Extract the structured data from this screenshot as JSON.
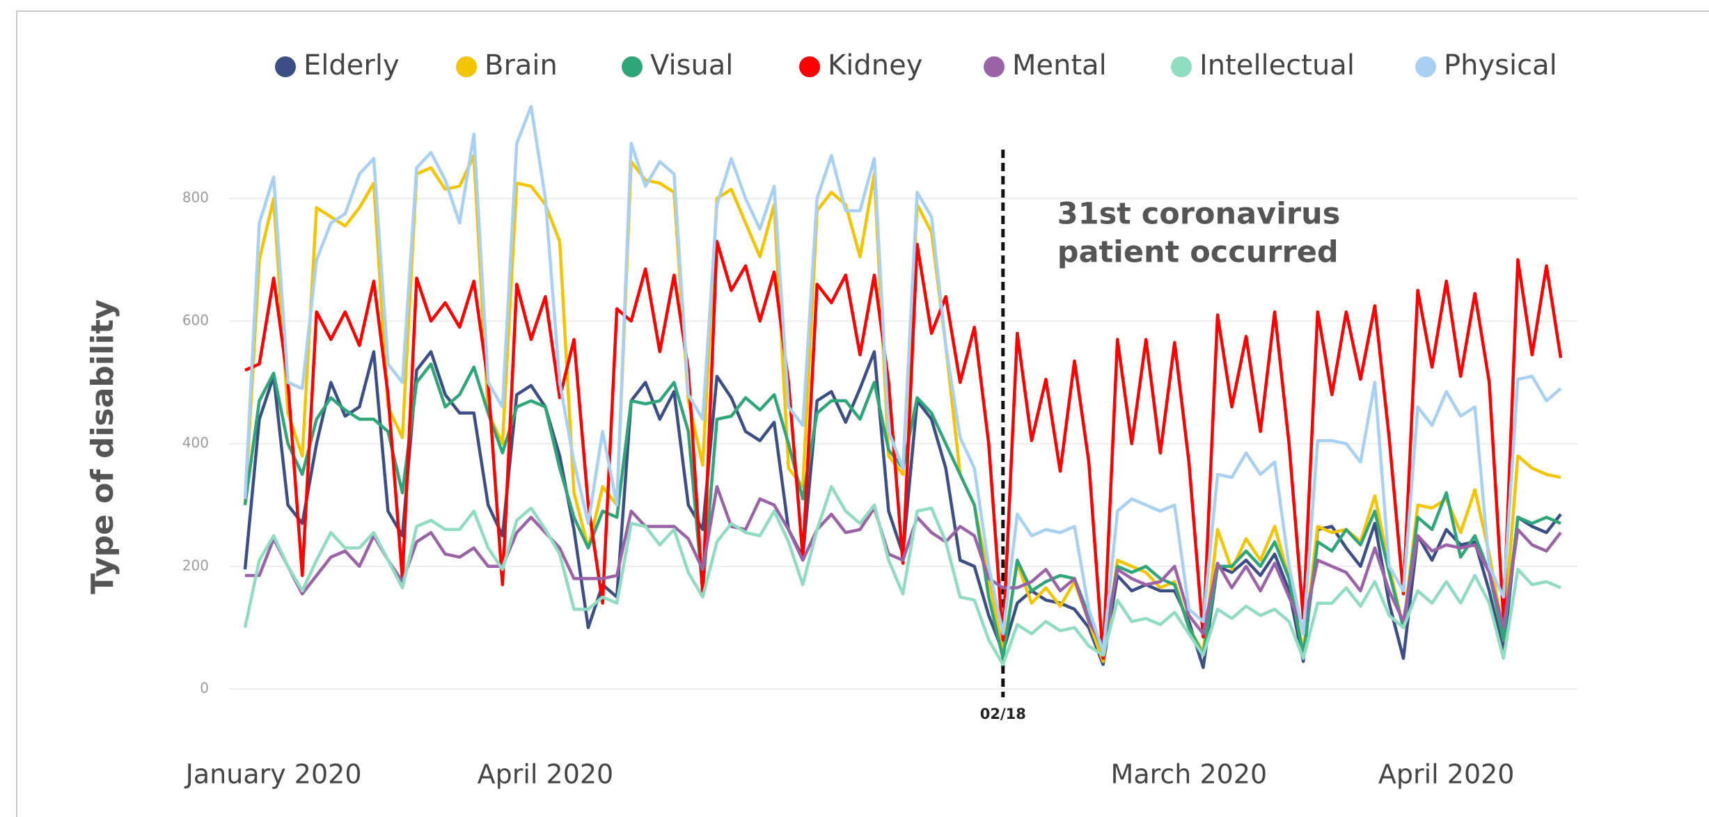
{
  "chart_data": {
    "type": "line",
    "ylabel": "Type of disability",
    "ylim": [
      0,
      1000
    ],
    "yticks": [
      0,
      200,
      400,
      600,
      800
    ],
    "grid": true,
    "legend": "top",
    "annotation": {
      "x": "02/18",
      "text": [
        "31st coronavirus",
        "patient occurred"
      ]
    },
    "categories": [
      null,
      null,
      "January 2020",
      null,
      null,
      null,
      null,
      null,
      null,
      null,
      null,
      null,
      null,
      null,
      null,
      null,
      null,
      null,
      null,
      null,
      null,
      "April 2020",
      null,
      null,
      null,
      null,
      null,
      null,
      null,
      null,
      null,
      null,
      null,
      null,
      null,
      null,
      null,
      null,
      null,
      null,
      null,
      null,
      null,
      null,
      null,
      null,
      null,
      null,
      null,
      null,
      null,
      null,
      null,
      "02/18",
      null,
      null,
      null,
      null,
      null,
      null,
      null,
      null,
      null,
      null,
      null,
      null,
      "March 2020",
      null,
      null,
      null,
      null,
      null,
      null,
      null,
      null,
      null,
      null,
      null,
      null,
      null,
      null,
      null,
      null,
      null,
      "April 2020",
      null,
      null,
      null,
      null,
      null,
      null,
      null,
      null
    ],
    "series": [
      {
        "name": "Elderly",
        "color": "#3b4f86",
        "values": [
          195,
          440,
          510,
          300,
          270,
          400,
          500,
          445,
          460,
          550,
          290,
          250,
          520,
          550,
          480,
          450,
          450,
          300,
          250,
          480,
          495,
          460,
          380,
          260,
          100,
          170,
          150,
          470,
          500,
          440,
          485,
          300,
          260,
          510,
          475,
          420,
          405,
          435,
          260,
          215,
          470,
          485,
          435,
          490,
          550,
          290,
          220,
          470,
          440,
          360,
          210,
          200,
          120,
          60,
          140,
          160,
          145,
          140,
          130,
          100,
          40,
          185,
          160,
          170,
          160,
          160,
          110,
          35,
          200,
          190,
          210,
          185,
          220,
          160,
          45,
          260,
          265,
          230,
          200,
          270,
          140,
          50,
          250,
          210,
          260,
          235,
          240,
          160,
          60,
          280,
          265,
          255,
          285
        ]
      },
      {
        "name": "Brain",
        "color": "#f2c500",
        "values": [
          300,
          700,
          800,
          450,
          380,
          785,
          770,
          755,
          785,
          825,
          460,
          410,
          840,
          850,
          815,
          820,
          870,
          450,
          400,
          825,
          820,
          790,
          730,
          320,
          230,
          330,
          300,
          860,
          830,
          825,
          810,
          470,
          365,
          800,
          815,
          760,
          705,
          790,
          360,
          330,
          780,
          810,
          790,
          705,
          840,
          380,
          350,
          790,
          745,
          560,
          350,
          300,
          180,
          60,
          205,
          140,
          165,
          135,
          175,
          110,
          45,
          210,
          200,
          190,
          165,
          175,
          100,
          60,
          260,
          195,
          245,
          210,
          265,
          180,
          60,
          265,
          255,
          260,
          240,
          315,
          200,
          100,
          300,
          295,
          310,
          255,
          325,
          220,
          90,
          380,
          360,
          350,
          345
        ]
      },
      {
        "name": "Visual",
        "color": "#2ea678",
        "values": [
          300,
          470,
          515,
          400,
          350,
          440,
          475,
          455,
          440,
          440,
          420,
          320,
          500,
          530,
          460,
          480,
          525,
          450,
          385,
          460,
          470,
          460,
          360,
          280,
          230,
          290,
          280,
          470,
          465,
          470,
          500,
          420,
          160,
          440,
          445,
          475,
          455,
          480,
          400,
          310,
          450,
          470,
          470,
          440,
          500,
          390,
          360,
          475,
          450,
          400,
          350,
          300,
          150,
          50,
          210,
          160,
          175,
          185,
          180,
          120,
          60,
          200,
          190,
          200,
          180,
          170,
          100,
          55,
          200,
          200,
          225,
          200,
          240,
          180,
          55,
          240,
          225,
          260,
          235,
          290,
          190,
          100,
          280,
          260,
          320,
          215,
          250,
          190,
          80,
          280,
          270,
          280,
          270
        ]
      },
      {
        "name": "Kidney",
        "color": "#ff0000",
        "values": [
          520,
          530,
          670,
          500,
          185,
          615,
          570,
          615,
          560,
          665,
          480,
          180,
          670,
          600,
          630,
          590,
          665,
          500,
          170,
          660,
          570,
          640,
          475,
          570,
          300,
          140,
          620,
          600,
          685,
          550,
          675,
          520,
          155,
          730,
          650,
          690,
          600,
          680,
          500,
          215,
          660,
          630,
          675,
          545,
          675,
          500,
          205,
          725,
          580,
          640,
          500,
          590,
          400,
          80,
          580,
          405,
          505,
          355,
          535,
          370,
          50,
          570,
          400,
          570,
          385,
          565,
          370,
          85,
          610,
          460,
          575,
          420,
          615,
          400,
          115,
          615,
          480,
          615,
          505,
          625,
          410,
          155,
          650,
          525,
          665,
          510,
          645,
          500,
          115,
          700,
          545,
          690,
          540
        ]
      },
      {
        "name": "Mental",
        "color": "#9b62a8",
        "values": [
          185,
          185,
          245,
          200,
          155,
          185,
          215,
          225,
          200,
          250,
          210,
          175,
          240,
          255,
          220,
          215,
          230,
          200,
          200,
          255,
          280,
          255,
          230,
          180,
          180,
          180,
          185,
          290,
          265,
          265,
          265,
          245,
          195,
          330,
          265,
          260,
          310,
          300,
          260,
          210,
          260,
          285,
          255,
          260,
          295,
          220,
          210,
          280,
          255,
          240,
          265,
          250,
          180,
          165,
          165,
          175,
          195,
          160,
          180,
          110,
          70,
          195,
          180,
          170,
          175,
          200,
          120,
          90,
          205,
          165,
          200,
          160,
          205,
          150,
          100,
          210,
          200,
          190,
          160,
          230,
          160,
          110,
          250,
          225,
          235,
          230,
          235,
          190,
          100,
          260,
          235,
          225,
          255
        ]
      },
      {
        "name": "Intellectual",
        "color": "#90dcc0",
        "values": [
          100,
          210,
          250,
          200,
          160,
          210,
          255,
          230,
          230,
          255,
          210,
          165,
          265,
          275,
          260,
          260,
          290,
          230,
          195,
          275,
          295,
          260,
          220,
          130,
          130,
          150,
          140,
          270,
          265,
          235,
          260,
          190,
          150,
          240,
          270,
          255,
          250,
          290,
          240,
          170,
          260,
          330,
          290,
          270,
          300,
          210,
          155,
          290,
          295,
          240,
          150,
          145,
          80,
          40,
          105,
          90,
          110,
          95,
          100,
          70,
          55,
          145,
          110,
          115,
          105,
          125,
          90,
          55,
          130,
          115,
          135,
          120,
          130,
          110,
          50,
          140,
          140,
          165,
          135,
          175,
          120,
          100,
          160,
          140,
          175,
          140,
          185,
          140,
          50,
          195,
          170,
          175,
          165
        ]
      },
      {
        "name": "Physical",
        "color": "#a7d0f3",
        "values": [
          310,
          760,
          835,
          500,
          490,
          700,
          760,
          775,
          840,
          865,
          530,
          500,
          850,
          875,
          830,
          760,
          905,
          500,
          460,
          890,
          950,
          800,
          500,
          370,
          270,
          420,
          300,
          890,
          820,
          860,
          840,
          480,
          440,
          790,
          865,
          800,
          750,
          820,
          460,
          430,
          800,
          870,
          780,
          780,
          865,
          420,
          360,
          810,
          770,
          560,
          410,
          360,
          200,
          90,
          285,
          250,
          260,
          255,
          265,
          130,
          60,
          290,
          310,
          300,
          290,
          300,
          130,
          110,
          350,
          345,
          385,
          350,
          370,
          200,
          90,
          405,
          405,
          400,
          370,
          500,
          200,
          160,
          460,
          430,
          485,
          445,
          460,
          200,
          150,
          505,
          510,
          470,
          490
        ]
      }
    ]
  }
}
